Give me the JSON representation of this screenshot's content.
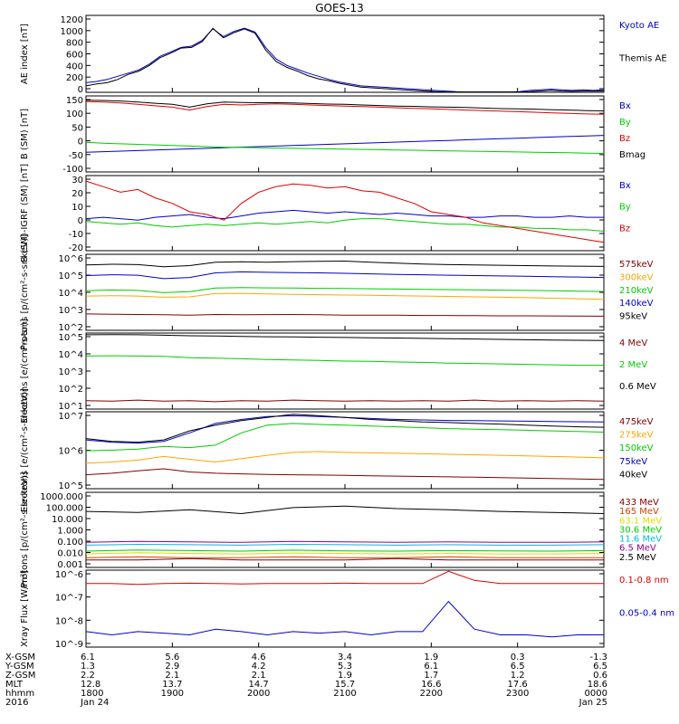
{
  "title": "GOES-13",
  "colors": {
    "black": "#000000",
    "red": "#dd0000",
    "green": "#00cc00",
    "blue": "#0000cc",
    "orange": "#ffa500",
    "cyan": "#00bbdd",
    "yellow": "#dddd00",
    "darkred": "#800000",
    "purple": "#8b008b",
    "brick": "#cc4400"
  },
  "chart_data": [
    {
      "type": "line",
      "panel": "ae",
      "ylabel": "AE index [nT]",
      "yticks": [
        "1200",
        "1000",
        "800",
        "600",
        "400",
        "200",
        "0"
      ],
      "ylim": [
        0,
        1200
      ],
      "series": [
        {
          "name": "Kyoto AE",
          "color": "blue",
          "values": [
            150,
            170,
            200,
            250,
            300,
            350,
            440,
            560,
            630,
            700,
            720,
            810,
            990,
            870,
            950,
            1000,
            940,
            700,
            520,
            420,
            360,
            300,
            250,
            200,
            160,
            130,
            100,
            90,
            80,
            70,
            60,
            50,
            40,
            30,
            20,
            10,
            5,
            5,
            5,
            5,
            5,
            10,
            30,
            40,
            50,
            40,
            30,
            40,
            30,
            40
          ]
        },
        {
          "name": "Themis AE",
          "color": "black",
          "values": [
            100,
            130,
            150,
            200,
            280,
            330,
            420,
            540,
            610,
            690,
            700,
            790,
            1000,
            850,
            930,
            990,
            920,
            660,
            480,
            390,
            330,
            260,
            210,
            180,
            140,
            110,
            80,
            70,
            60,
            50,
            40,
            30,
            20,
            10,
            5,
            5,
            5,
            5,
            5,
            5,
            5,
            5,
            10,
            20,
            30,
            20,
            15,
            20,
            20,
            20
          ]
        }
      ]
    },
    {
      "type": "line",
      "panel": "bfield",
      "ylabel": "B (SM) [nT]",
      "yticks": [
        "150",
        "100",
        "50",
        "0",
        "-50",
        "-100"
      ],
      "ylim": [
        -120,
        150
      ],
      "series": [
        {
          "name": "Bx",
          "color": "blue",
          "values": [
            -50,
            -48,
            -46,
            -44,
            -42,
            -40,
            -38,
            -36,
            -34,
            -32,
            -30,
            -28,
            -26,
            -24,
            -22,
            -20,
            -18,
            -16,
            -14,
            -12,
            -10,
            -8,
            -6,
            -4,
            -2,
            0,
            2,
            4,
            6,
            8,
            10
          ]
        },
        {
          "name": "By",
          "color": "green",
          "values": [
            -15,
            -18,
            -20,
            -22,
            -24,
            -26,
            -28,
            -30,
            -32,
            -33,
            -34,
            -35,
            -36,
            -37,
            -38,
            -39,
            -40,
            -41,
            -42,
            -43,
            -44,
            -45,
            -46,
            -47,
            -48,
            -49,
            -50,
            -51,
            -52,
            -53,
            -54
          ]
        },
        {
          "name": "Bz",
          "color": "red",
          "values": [
            130,
            128,
            125,
            120,
            115,
            110,
            100,
            112,
            120,
            118,
            120,
            122,
            120,
            118,
            116,
            114,
            112,
            110,
            108,
            106,
            104,
            102,
            100,
            98,
            96,
            94,
            92,
            90,
            88,
            86,
            85
          ]
        },
        {
          "name": "Bmag",
          "color": "black",
          "values": [
            135,
            134,
            132,
            128,
            124,
            120,
            110,
            122,
            128,
            127,
            126,
            126,
            125,
            123,
            121,
            120,
            118,
            116,
            114,
            113,
            111,
            110,
            109,
            107,
            105,
            104,
            103,
            101,
            100,
            98,
            97
          ]
        }
      ]
    },
    {
      "type": "line",
      "panel": "bdiff",
      "ylabel": "B (SM)-IGRF (SM) [nT]",
      "yticks": [
        "30",
        "20",
        "10",
        "0",
        "-10",
        "-20"
      ],
      "ylim": [
        -22,
        32
      ],
      "series": [
        {
          "name": "Bx",
          "color": "blue",
          "values": [
            1,
            2,
            1,
            0,
            2,
            3,
            4,
            2,
            1,
            3,
            5,
            6,
            7,
            6,
            5,
            6,
            5,
            4,
            5,
            4,
            3,
            3,
            2,
            2,
            3,
            3,
            2,
            2,
            3,
            2,
            2
          ]
        },
        {
          "name": "By",
          "color": "green",
          "values": [
            -1,
            -2,
            -3,
            -2,
            -4,
            -5,
            -4,
            -3,
            -4,
            -3,
            -2,
            -3,
            -2,
            -1,
            -2,
            0,
            1,
            1,
            0,
            -1,
            -2,
            -3,
            -3,
            -4,
            -5,
            -5,
            -6,
            -6,
            -7,
            -7,
            -8
          ]
        },
        {
          "name": "Bz",
          "color": "red",
          "values": [
            28,
            24,
            20,
            22,
            16,
            12,
            6,
            4,
            0,
            12,
            20,
            24,
            26,
            25,
            23,
            24,
            21,
            20,
            16,
            12,
            6,
            4,
            2,
            -2,
            -4,
            -6,
            -8,
            -10,
            -12,
            -14,
            -16
          ]
        }
      ]
    },
    {
      "type": "line",
      "panel": "protons",
      "log": true,
      "ylabel": "Protons [p/(cm²-s-sr-keV)]",
      "yticks": [
        "10^6",
        "10^5",
        "10^4",
        "10^3",
        "10^2"
      ],
      "ylim": [
        10,
        1000000
      ],
      "series": [
        {
          "name": "575keV",
          "color": "darkred",
          "values": [
            120,
            115,
            110,
            105,
            100,
            110,
            105,
            108,
            110,
            105,
            100,
            100,
            98,
            95,
            95,
            92,
            90,
            90,
            88,
            86,
            85
          ]
        },
        {
          "name": "300keV",
          "color": "orange",
          "values": [
            1800,
            1900,
            1800,
            1500,
            1600,
            2600,
            2700,
            2500,
            2300,
            2200,
            2100,
            2000,
            1900,
            1800,
            1700,
            1600,
            1500,
            1400,
            1300,
            1200,
            1100
          ]
        },
        {
          "name": "210keV",
          "color": "green",
          "values": [
            4000,
            4500,
            4200,
            3000,
            3500,
            6000,
            6500,
            6200,
            6000,
            5800,
            5600,
            5400,
            5200,
            5000,
            4800,
            4600,
            4400,
            4200,
            4000,
            3800,
            3600
          ]
        },
        {
          "name": "140keV",
          "color": "blue",
          "values": [
            40000,
            45000,
            42000,
            25000,
            30000,
            60000,
            70000,
            65000,
            62000,
            60000,
            56000,
            52000,
            48000,
            45000,
            42000,
            40000,
            38000,
            36000,
            34000,
            32000,
            30000
          ]
        },
        {
          "name": "95keV",
          "color": "black",
          "values": [
            200000,
            220000,
            210000,
            150000,
            180000,
            300000,
            320000,
            300000,
            330000,
            350000,
            360000,
            300000,
            260000,
            230000,
            210000,
            200000,
            190000,
            180000,
            170000,
            165000,
            160000
          ]
        }
      ]
    },
    {
      "type": "line",
      "panel": "electrons_mev",
      "log": true,
      "ylabel": "Electrons [e/(cm²-s-sr)]",
      "yticks": [
        "10^5",
        "10^4",
        "10^3",
        "10^2",
        "10^1"
      ],
      "ylim": [
        5,
        100000
      ],
      "series": [
        {
          "name": "4 MeV",
          "color": "darkred",
          "values": [
            15,
            14,
            16,
            14,
            15,
            13,
            15,
            14,
            16,
            15,
            14,
            15,
            14,
            15,
            14,
            16,
            14,
            15,
            14,
            15,
            14
          ]
        },
        {
          "name": "2 MeV",
          "color": "green",
          "values": [
            5000,
            5200,
            5000,
            4800,
            4000,
            3800,
            3500,
            3200,
            3000,
            2800,
            2600,
            2500,
            2300,
            2200,
            2000,
            1900,
            1800,
            1700,
            1600,
            1500,
            1500
          ]
        },
        {
          "name": "0.6 MeV",
          "color": "black",
          "values": [
            80000,
            82000,
            80000,
            75000,
            70000,
            68000,
            65000,
            62000,
            60000,
            58000,
            56000,
            54000,
            52000,
            50000,
            48000,
            46000,
            44000,
            42000,
            40000,
            39000,
            38000
          ]
        }
      ]
    },
    {
      "type": "line",
      "panel": "electrons_kev",
      "log": true,
      "ylabel": "Electrons [e/(cm²-s-sr-keV)]",
      "yticks": [
        "10^7",
        "10^6",
        "10^5"
      ],
      "ylim": [
        10000,
        10000000
      ],
      "series": [
        {
          "name": "475keV",
          "color": "darkred",
          "values": [
            35000,
            40000,
            50000,
            60000,
            45000,
            40000,
            38000,
            36000,
            35000,
            34000,
            33000,
            32000,
            31000,
            30000,
            29000,
            28000,
            27000,
            26000,
            25000,
            24000,
            23000
          ]
        },
        {
          "name": "275keV",
          "color": "orange",
          "values": [
            100000,
            110000,
            130000,
            180000,
            140000,
            110000,
            150000,
            200000,
            260000,
            280000,
            260000,
            250000,
            240000,
            230000,
            220000,
            210000,
            200000,
            190000,
            180000,
            170000,
            160000
          ]
        },
        {
          "name": "150keV",
          "color": "green",
          "values": [
            300000,
            320000,
            350000,
            450000,
            400000,
            500000,
            1500000,
            3000000,
            3500000,
            3200000,
            3000000,
            2800000,
            2600000,
            2400000,
            2200000,
            2100000,
            2000000,
            1900000,
            1800000,
            1700000,
            1600000
          ]
        },
        {
          "name": "75keV",
          "color": "blue",
          "values": [
            800000,
            650000,
            600000,
            700000,
            1500000,
            3500000,
            5000000,
            6500000,
            7000000,
            6500000,
            6000000,
            5500000,
            5000000,
            4800000,
            4600000,
            4500000,
            4400000,
            4300000,
            4200000,
            4100000,
            4000000
          ]
        },
        {
          "name": "40keV",
          "color": "black",
          "values": [
            900000,
            700000,
            650000,
            800000,
            1800000,
            3000000,
            4500000,
            6000000,
            8000000,
            7000000,
            6000000,
            5000000,
            4500000,
            4000000,
            3800000,
            3500000,
            3300000,
            3000000,
            2800000,
            2600000,
            2500000
          ]
        }
      ]
    },
    {
      "type": "line",
      "panel": "protons_mev",
      "log": true,
      "ylabel": "Protons [p/(cm²-s-sr-keV)]",
      "yticks": [
        "1000.000",
        "100.000",
        "10.000",
        "1.000",
        "0.100",
        "0.010",
        "0.001"
      ],
      "ylim": [
        0.001,
        1000
      ],
      "series": [
        {
          "name": "433 MeV",
          "color": "darkred",
          "values": [
            0.004,
            0.004,
            0.005,
            0.004,
            0.004,
            0.004,
            0.005,
            0.004,
            0.004,
            0.004,
            0.004
          ]
        },
        {
          "name": "165 MeV",
          "color": "brick",
          "values": [
            0.006,
            0.007,
            0.006,
            0.006,
            0.007,
            0.006,
            0.006,
            0.007,
            0.006,
            0.006,
            0.006
          ]
        },
        {
          "name": "63.1 MeV",
          "color": "yellow",
          "values": [
            0.012,
            0.015,
            0.013,
            0.012,
            0.014,
            0.013,
            0.012,
            0.013,
            0.012,
            0.012,
            0.013
          ]
        },
        {
          "name": "30.6 MeV",
          "color": "green",
          "values": [
            0.02,
            0.025,
            0.022,
            0.02,
            0.024,
            0.021,
            0.02,
            0.022,
            0.021,
            0.02,
            0.022
          ]
        },
        {
          "name": "11.6 MeV",
          "color": "cyan",
          "values": [
            0.06,
            0.07,
            0.065,
            0.06,
            0.07,
            0.065,
            0.06,
            0.065,
            0.06,
            0.06,
            0.065
          ]
        },
        {
          "name": "6.5 MeV",
          "color": "purple",
          "values": [
            0.1,
            0.12,
            0.11,
            0.1,
            0.12,
            0.11,
            0.1,
            0.11,
            0.1,
            0.1,
            0.11
          ]
        },
        {
          "name": "2.5 MeV",
          "color": "black",
          "values": [
            30,
            25,
            40,
            20,
            60,
            80,
            50,
            40,
            30,
            25,
            20
          ]
        }
      ]
    },
    {
      "type": "line",
      "panel": "xray",
      "log": true,
      "ylabel": "Xray Flux [W/m²]",
      "yticks": [
        "10^-6",
        "10^-7",
        "10^-8",
        "10^-9"
      ],
      "ylim": [
        1e-09,
        1e-06
      ],
      "series": [
        {
          "name": "0.1-0.8 nm",
          "color": "red",
          "values": [
            3e-07,
            3e-07,
            2.8e-07,
            3e-07,
            3.1e-07,
            3e-07,
            2.9e-07,
            3e-07,
            3e-07,
            3e-07,
            3.1e-07,
            3e-07,
            3e-07,
            3e-07,
            9e-07,
            4e-07,
            3e-07,
            3e-07,
            3e-07,
            3e-07,
            3e-07
          ]
        },
        {
          "name": "0.05-0.4 nm",
          "color": "blue",
          "values": [
            4e-09,
            3e-09,
            4e-09,
            3.5e-09,
            3e-09,
            5e-09,
            4e-09,
            3e-09,
            4e-09,
            3.5e-09,
            4e-09,
            3e-09,
            4e-09,
            4e-09,
            6e-08,
            5e-09,
            3e-09,
            3e-09,
            2.5e-09,
            3e-09,
            3e-09
          ]
        }
      ]
    }
  ],
  "footer": {
    "rows": [
      {
        "label": "X-GSM",
        "values": [
          "6.1",
          "5.6",
          "4.6",
          "3.4",
          "1.9",
          "0.3",
          "-1.3"
        ]
      },
      {
        "label": "Y-GSM",
        "values": [
          "1.3",
          "2.9",
          "4.2",
          "5.3",
          "6.1",
          "6.5",
          "6.5"
        ]
      },
      {
        "label": "Z-GSM",
        "values": [
          "2.2",
          "2.1",
          "2.1",
          "1.9",
          "1.7",
          "1.2",
          "0.6"
        ]
      },
      {
        "label": "MLT",
        "values": [
          "12.8",
          "13.7",
          "14.7",
          "15.7",
          "16.6",
          "17.6",
          "18.6"
        ]
      },
      {
        "label": "hhmm",
        "values": [
          "1800",
          "1900",
          "2000",
          "2100",
          "2200",
          "2300",
          "0000"
        ]
      },
      {
        "label": "2016",
        "values": [
          "Jan 24",
          "",
          "",
          "",
          "",
          "",
          "Jan 25"
        ]
      }
    ]
  }
}
